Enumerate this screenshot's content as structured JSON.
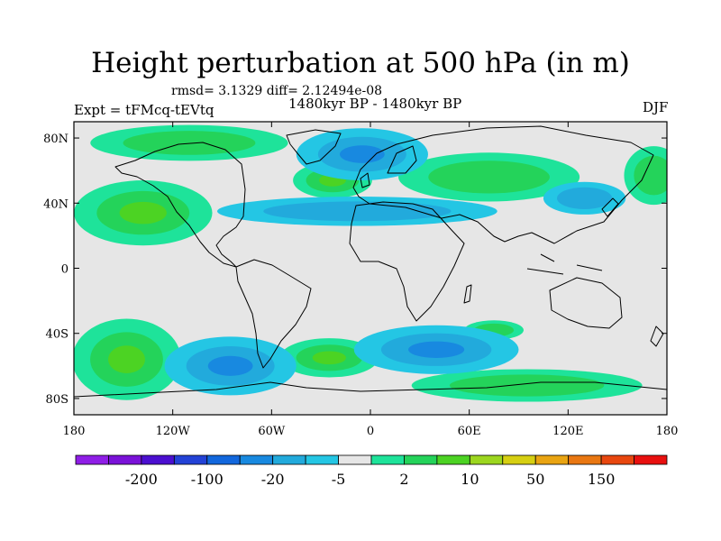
{
  "title": "Height perturbation at 500 hPa (in m)",
  "stats": "rmsd= 3.1329 diff= 2.12494e-08",
  "period": "1480kyr BP - 1480kyr BP",
  "experiment": "Expt = tFMcq-tEVtq",
  "season": "DJF",
  "map": {
    "projection": "cylindrical equidistant",
    "lon_range": [
      -180,
      180
    ],
    "lat_range": [
      -90,
      90
    ],
    "background": "#e6e6e6",
    "y_ticks": [
      {
        "lat": 80,
        "label": "80N"
      },
      {
        "lat": 40,
        "label": "40N"
      },
      {
        "lat": 0,
        "label": "0"
      },
      {
        "lat": -40,
        "label": "40S"
      },
      {
        "lat": -80,
        "label": "80S"
      }
    ],
    "x_ticks": [
      {
        "lon": -180,
        "label": "180"
      },
      {
        "lon": -120,
        "label": "120W"
      },
      {
        "lon": -60,
        "label": "60W"
      },
      {
        "lon": 0,
        "label": "0"
      },
      {
        "lon": 60,
        "label": "60E"
      },
      {
        "lon": 120,
        "label": "120E"
      },
      {
        "lon": 180,
        "label": "180"
      }
    ],
    "anomalies": [
      {
        "name": "north-pacific-high",
        "lon": -138,
        "lat": 34,
        "rlon": 42,
        "rlat": 20,
        "level": 2
      },
      {
        "name": "arctic-canada-high",
        "lon": -110,
        "lat": 77,
        "rlon": 60,
        "rlat": 11,
        "level": 1
      },
      {
        "name": "north-atlantic-high",
        "lon": -23,
        "lat": 54,
        "rlon": 24,
        "rlat": 11,
        "level": 2
      },
      {
        "name": "eurasian-high",
        "lon": 72,
        "lat": 56,
        "rlon": 55,
        "rlat": 15,
        "level": 1
      },
      {
        "name": "west-pacific-high",
        "lon": 172,
        "lat": 57,
        "rlon": 18,
        "rlat": 18,
        "level": 1
      },
      {
        "name": "south-pacific-high",
        "lon": -148,
        "lat": -56,
        "rlon": 33,
        "rlat": 25,
        "level": 2
      },
      {
        "name": "south-atlantic-high",
        "lon": -25,
        "lat": -55,
        "rlon": 30,
        "rlat": 12,
        "level": 2
      },
      {
        "name": "southern-ocean-high",
        "lon": 95,
        "lat": -72,
        "rlon": 70,
        "rlat": 10,
        "level": 1
      },
      {
        "name": "indian-ocean-high",
        "lon": 75,
        "lat": -38,
        "rlon": 18,
        "rlat": 6,
        "level": 1
      },
      {
        "name": "greenland-low",
        "lon": -5,
        "lat": 70,
        "rlon": 40,
        "rlat": 16,
        "level": -2
      },
      {
        "name": "north-atlantic-low",
        "lon": -8,
        "lat": 35,
        "rlon": 85,
        "rlat": 9,
        "level": -1
      },
      {
        "name": "central-asia-low",
        "lon": 130,
        "lat": 43,
        "rlon": 25,
        "rlat": 10,
        "level": -1
      },
      {
        "name": "south-pacific-low",
        "lon": -85,
        "lat": -60,
        "rlon": 40,
        "rlat": 18,
        "level": -2
      },
      {
        "name": "south-indian-low",
        "lon": 40,
        "lat": -50,
        "rlon": 50,
        "rlat": 15,
        "level": -2
      }
    ]
  },
  "colorbar": {
    "colors": [
      "#8f1ee6",
      "#7a12d8",
      "#4b0fd0",
      "#2342d6",
      "#1267dd",
      "#1889e0",
      "#22aadc",
      "#24c6e4",
      "#e6e6e6",
      "#1ee39a",
      "#24d35a",
      "#4cd323",
      "#9cd61f",
      "#d6cf12",
      "#e9a412",
      "#e97712",
      "#e8470f",
      "#e8100f"
    ],
    "labels": [
      {
        "index": 2,
        "text": "-200"
      },
      {
        "index": 4,
        "text": "-100"
      },
      {
        "index": 6,
        "text": "-20"
      },
      {
        "index": 8,
        "text": "-5"
      },
      {
        "index": 10,
        "text": "2"
      },
      {
        "index": 12,
        "text": "10"
      },
      {
        "index": 14,
        "text": "50"
      },
      {
        "index": 16,
        "text": "150"
      }
    ]
  }
}
